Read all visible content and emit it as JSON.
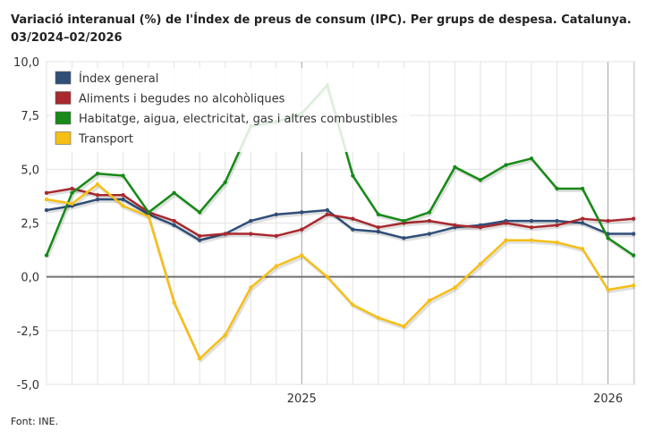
{
  "header": {
    "title_line1": "Variació interanual (%) de l'Índex de preus de consum (IPC). Per grups de despesa. Catalunya.",
    "title_line2": "03/2024–02/2026"
  },
  "footer": {
    "source": "Font: INE."
  },
  "chart_data": {
    "type": "line",
    "title": "Variació interanual (%) de l'Índex de preus de consum (IPC). Per grups de despesa. Catalunya. 03/2024–02/2026",
    "xlabel": "",
    "ylabel": "",
    "ylim": [
      -5,
      10
    ],
    "yticks": [
      -5,
      -2.5,
      0,
      2.5,
      5,
      7.5,
      10
    ],
    "ytick_labels": [
      "-5,0",
      "-2,5",
      "0,0",
      "2,5",
      "5,0",
      "7,5",
      "10,0"
    ],
    "x": [
      "03/2024",
      "04/2024",
      "05/2024",
      "06/2024",
      "07/2024",
      "08/2024",
      "09/2024",
      "10/2024",
      "11/2024",
      "12/2024",
      "01/2025",
      "02/2025",
      "03/2025",
      "04/2025",
      "05/2025",
      "06/2025",
      "07/2025",
      "08/2025",
      "09/2025",
      "10/2025",
      "11/2025",
      "12/2025",
      "01/2026",
      "02/2026"
    ],
    "xtick_labels": [
      {
        "index": 10,
        "label": "2025"
      },
      {
        "index": 22,
        "label": "2026"
      }
    ],
    "legend_position": "top-left",
    "grid": true,
    "series": [
      {
        "name": "Índex general",
        "color": "#2f4e78",
        "values": [
          3.1,
          3.3,
          3.6,
          3.6,
          2.9,
          2.4,
          1.7,
          2.0,
          2.6,
          2.9,
          3.0,
          3.1,
          2.2,
          2.1,
          1.8,
          2.0,
          2.3,
          2.4,
          2.6,
          2.6,
          2.6,
          2.5,
          2.0,
          2.0
        ]
      },
      {
        "name": "Aliments i begudes no alcohòliques",
        "color": "#a8292e",
        "values": [
          3.9,
          4.1,
          3.8,
          3.8,
          3.0,
          2.6,
          1.9,
          2.0,
          2.0,
          1.9,
          2.2,
          2.9,
          2.7,
          2.3,
          2.5,
          2.6,
          2.4,
          2.3,
          2.5,
          2.3,
          2.4,
          2.7,
          2.6,
          2.7
        ]
      },
      {
        "name": "Habitatge, aigua, electricitat, gas i altres combustibles",
        "color": "#178a17",
        "values": [
          1.0,
          3.9,
          4.8,
          4.7,
          3.0,
          3.9,
          3.0,
          4.4,
          7.0,
          7.2,
          7.6,
          8.9,
          4.7,
          2.9,
          2.6,
          3.0,
          5.1,
          4.5,
          5.2,
          5.5,
          4.1,
          4.1,
          1.8,
          1.0
        ]
      },
      {
        "name": "Transport",
        "color": "#f5bf16",
        "values": [
          3.6,
          3.4,
          4.3,
          3.3,
          2.8,
          -1.2,
          -3.8,
          -2.7,
          -0.5,
          0.5,
          1.0,
          0.0,
          -1.3,
          -1.9,
          -2.3,
          -1.1,
          -0.5,
          0.6,
          1.7,
          1.7,
          1.6,
          1.3,
          -0.6,
          -0.4
        ]
      }
    ]
  }
}
